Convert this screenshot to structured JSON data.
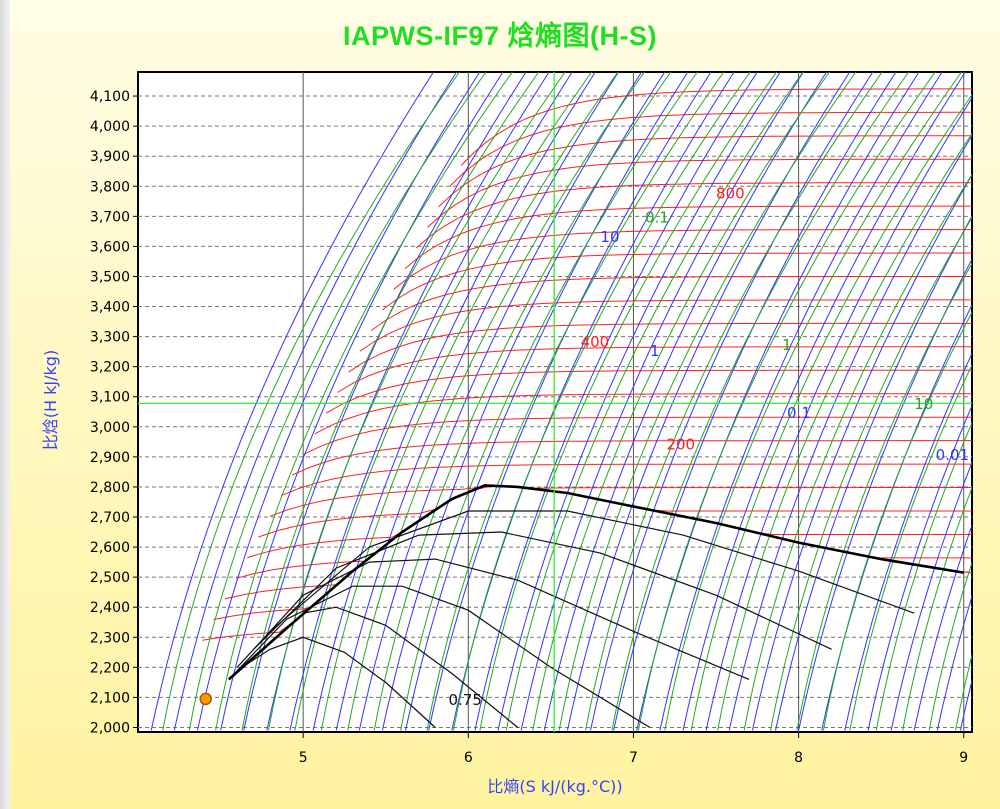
{
  "chart_data": {
    "type": "line",
    "title": "IAPWS-IF97 焓熵图(H-S)",
    "xlabel": "比熵(S  kJ/(kg.°C))",
    "ylabel": "比焓(H  kJ/kg)",
    "xlim": [
      4.0,
      9.05
    ],
    "ylim": [
      1985,
      4180
    ],
    "xticks": [
      "5",
      "6",
      "7",
      "8",
      "9"
    ],
    "yticks": [
      "2,000",
      "2,100",
      "2,200",
      "2,300",
      "2,400",
      "2,500",
      "2,600",
      "2,700",
      "2,800",
      "2,900",
      "3,000",
      "3,100",
      "3,200",
      "3,300",
      "3,400",
      "3,500",
      "3,600",
      "3,700",
      "3,800",
      "3,900",
      "4,000",
      "4,100"
    ],
    "grid": true,
    "crosshair": {
      "x": 6.52,
      "y": 3078
    },
    "marker_point": {
      "x": 4.41,
      "y": 2095
    },
    "saturation_curve": [
      [
        4.55,
        2160
      ],
      [
        4.9,
        2330
      ],
      [
        5.3,
        2520
      ],
      [
        5.6,
        2650
      ],
      [
        5.9,
        2760
      ],
      [
        6.1,
        2805
      ],
      [
        6.3,
        2800
      ],
      [
        6.6,
        2780
      ],
      [
        7.0,
        2735
      ],
      [
        7.5,
        2680
      ],
      [
        8.0,
        2615
      ],
      [
        8.5,
        2560
      ],
      [
        9.0,
        2515
      ]
    ],
    "quality_curves": [
      {
        "label": "0.75",
        "points": [
          [
            4.6,
            2190
          ],
          [
            4.8,
            2260
          ],
          [
            5.0,
            2300
          ],
          [
            5.25,
            2250
          ],
          [
            5.5,
            2150
          ],
          [
            5.8,
            2000
          ]
        ]
      },
      {
        "label": "",
        "points": [
          [
            4.55,
            2160
          ],
          [
            4.8,
            2280
          ],
          [
            5.0,
            2380
          ],
          [
            5.2,
            2400
          ],
          [
            5.5,
            2340
          ],
          [
            5.9,
            2180
          ],
          [
            6.3,
            2000
          ]
        ]
      },
      {
        "label": "",
        "points": [
          [
            4.55,
            2160
          ],
          [
            4.9,
            2360
          ],
          [
            5.3,
            2470
          ],
          [
            5.6,
            2470
          ],
          [
            6.0,
            2390
          ],
          [
            6.5,
            2200
          ],
          [
            7.1,
            2000
          ]
        ]
      },
      {
        "label": "",
        "points": [
          [
            4.6,
            2200
          ],
          [
            5.0,
            2440
          ],
          [
            5.4,
            2550
          ],
          [
            5.8,
            2560
          ],
          [
            6.3,
            2490
          ],
          [
            7.0,
            2320
          ],
          [
            7.7,
            2160
          ]
        ]
      },
      {
        "label": "",
        "points": [
          [
            4.7,
            2260
          ],
          [
            5.2,
            2530
          ],
          [
            5.7,
            2640
          ],
          [
            6.2,
            2650
          ],
          [
            6.8,
            2580
          ],
          [
            7.5,
            2440
          ],
          [
            8.2,
            2260
          ]
        ]
      },
      {
        "label": "",
        "points": [
          [
            4.8,
            2320
          ],
          [
            5.4,
            2600
          ],
          [
            6.0,
            2720
          ],
          [
            6.6,
            2720
          ],
          [
            7.3,
            2640
          ],
          [
            8.0,
            2520
          ],
          [
            8.7,
            2380
          ]
        ]
      }
    ],
    "series_labels": [
      {
        "text": "800",
        "color": "#ff2020",
        "x": 7.5,
        "y": 3760
      },
      {
        "text": "0.1",
        "color": "#22aa22",
        "x": 7.07,
        "y": 3680
      },
      {
        "text": "10",
        "color": "#3333ff",
        "x": 6.8,
        "y": 3615
      },
      {
        "text": "400",
        "color": "#ff2020",
        "x": 6.68,
        "y": 3265
      },
      {
        "text": "1",
        "color": "#3333ff",
        "x": 7.1,
        "y": 3235
      },
      {
        "text": "1",
        "color": "#22aa22",
        "x": 7.9,
        "y": 3255
      },
      {
        "text": "0.1",
        "color": "#3333ff",
        "x": 7.93,
        "y": 3030
      },
      {
        "text": "10",
        "color": "#22aa22",
        "x": 8.7,
        "y": 3060
      },
      {
        "text": "200",
        "color": "#ff2020",
        "x": 7.2,
        "y": 2925
      },
      {
        "text": "0.01",
        "color": "#3333ff",
        "x": 8.83,
        "y": 2890
      },
      {
        "text": "0.75",
        "color": "#111111",
        "x": 5.88,
        "y": 2075
      }
    ],
    "series": [
      {
        "name": "",
        "color": "#ff2020"
      },
      {
        "name": "",
        "color": "#3333ff"
      },
      {
        "name": "",
        "color": "#22aa22"
      },
      {
        "name": "",
        "color": "#111111"
      }
    ]
  }
}
